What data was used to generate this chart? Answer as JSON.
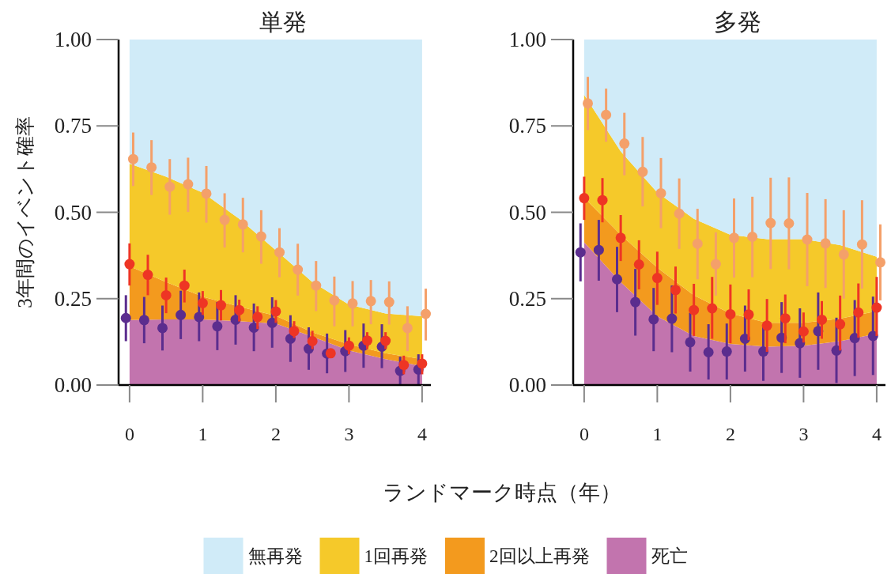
{
  "chart_data": [
    {
      "type": "area",
      "title": "単発",
      "xlabel": "ランドマーク時点（年）",
      "ylabel": "3年間のイベント確率",
      "stacked": true,
      "legend": "bottom",
      "x": [
        0,
        0.5,
        1,
        1.5,
        2,
        2.5,
        3,
        3.5,
        4
      ],
      "xlim": [
        -0.15,
        4.12
      ],
      "xticks": [
        0,
        1,
        2,
        3,
        4
      ],
      "ylim": [
        0,
        1
      ],
      "yticks": [
        {
          "value": 0,
          "label": "0.00"
        },
        {
          "value": 0.25,
          "label": "0.25"
        },
        {
          "value": 0.5,
          "label": "0.50"
        },
        {
          "value": 0.75,
          "label": "0.75"
        },
        {
          "value": 1,
          "label": "1.00"
        }
      ],
      "series": [
        {
          "name": "死亡",
          "color": "#c274ae",
          "values": [
            0.188,
            0.19,
            0.19,
            0.185,
            0.178,
            0.14,
            0.1,
            0.075,
            0.055
          ]
        },
        {
          "name": "2回以上再発",
          "color": "#f39a1e",
          "values": [
            0.156,
            0.108,
            0.066,
            0.042,
            0.022,
            0.013,
            0.018,
            0.017,
            0.02
          ]
        },
        {
          "name": "1回再発",
          "color": "#f5c92a",
          "values": [
            0.297,
            0.305,
            0.301,
            0.254,
            0.19,
            0.145,
            0.115,
            0.115,
            0.124
          ]
        },
        {
          "name": "無再発",
          "color": "#d0ebf8",
          "values": [
            0.359,
            0.397,
            0.443,
            0.519,
            0.61,
            0.702,
            0.767,
            0.793,
            0.801
          ]
        },
        {
          "type": "scatter",
          "color": "#5b2d8e",
          "x": [
            -0.05,
            0.2,
            0.45,
            0.7,
            0.95,
            1.2,
            1.45,
            1.7,
            1.95,
            2.2,
            2.45,
            2.7,
            2.95,
            3.2,
            3.45,
            3.7,
            3.95
          ],
          "marker": "circle",
          "values": [
            0.194,
            0.188,
            0.165,
            0.203,
            0.197,
            0.17,
            0.189,
            0.166,
            0.18,
            0.134,
            0.105,
            0.091,
            0.098,
            0.114,
            0.111,
            0.041,
            0.045
          ],
          "errors": [
            [
              0.127,
              0.26
            ],
            [
              0.121,
              0.255
            ],
            [
              0.1,
              0.23
            ],
            [
              0.133,
              0.273
            ],
            [
              0.127,
              0.268
            ],
            [
              0.101,
              0.24
            ],
            [
              0.117,
              0.26
            ],
            [
              0.098,
              0.236
            ],
            [
              0.108,
              0.254
            ],
            [
              0.067,
              0.202
            ],
            [
              0.044,
              0.167
            ],
            [
              0.034,
              0.149
            ],
            [
              0.038,
              0.159
            ],
            [
              0.05,
              0.178
            ],
            [
              0.049,
              0.176
            ],
            [
              0.002,
              0.082
            ],
            [
              0.002,
              0.089
            ]
          ]
        },
        {
          "type": "scatter",
          "color": "#ee3524",
          "x": [
            0,
            0.25,
            0.5,
            0.75,
            1,
            1.25,
            1.5,
            1.75,
            2,
            2.25,
            2.5,
            2.75,
            3,
            3.25,
            3.5,
            3.75,
            4
          ],
          "marker": "circle",
          "values": [
            0.35,
            0.319,
            0.26,
            0.288,
            0.237,
            0.231,
            0.217,
            0.197,
            0.213,
            0.156,
            0.127,
            0.092,
            0.114,
            0.129,
            0.128,
            0.058,
            0.062
          ],
          "errors": [
            [
              0.288,
              0.41
            ],
            [
              0.26,
              0.377
            ],
            [
              0.208,
              0.311
            ],
            [
              0.239,
              0.334
            ],
            [
              0.203,
              0.272
            ],
            [
              0.187,
              0.275
            ],
            [
              0.184,
              0.247
            ],
            [
              0.162,
              0.228
            ],
            [
              0.18,
              0.246
            ],
            [
              0.136,
              0.185
            ],
            [
              0.104,
              0.157
            ],
            null,
            [
              0.089,
              0.138
            ],
            [
              0.104,
              0.153
            ],
            [
              0.104,
              0.153
            ],
            [
              0.031,
              0.085
            ],
            [
              0.031,
              0.089
            ]
          ]
        },
        {
          "type": "scatter",
          "color": "#f4a06a",
          "x": [
            0.05,
            0.3,
            0.55,
            0.8,
            1.05,
            1.3,
            1.55,
            1.8,
            2.05,
            2.3,
            2.55,
            2.8,
            3.05,
            3.3,
            3.55,
            3.8,
            4.05
          ],
          "marker": "circle",
          "values": [
            0.654,
            0.63,
            0.574,
            0.581,
            0.554,
            0.478,
            0.465,
            0.43,
            0.384,
            0.334,
            0.288,
            0.245,
            0.236,
            0.243,
            0.24,
            0.165,
            0.206
          ],
          "errors": [
            [
              0.576,
              0.731
            ],
            [
              0.55,
              0.709
            ],
            [
              0.493,
              0.654
            ],
            [
              0.501,
              0.658
            ],
            [
              0.47,
              0.634
            ],
            [
              0.398,
              0.555
            ],
            [
              0.384,
              0.542
            ],
            [
              0.351,
              0.506
            ],
            [
              0.312,
              0.454
            ],
            [
              0.259,
              0.409
            ],
            [
              0.214,
              0.359
            ],
            [
              0.17,
              0.314
            ],
            [
              0.17,
              0.301
            ],
            [
              0.176,
              0.304
            ],
            [
              0.175,
              0.3
            ],
            [
              0.098,
              0.228
            ],
            [
              0.129,
              0.279
            ]
          ]
        }
      ]
    },
    {
      "type": "area",
      "title": "多発",
      "stacked": true,
      "x": [
        0,
        0.5,
        1,
        1.5,
        2,
        2.5,
        3,
        3.5,
        4
      ],
      "xlim": [
        -0.15,
        4.12
      ],
      "xticks": [
        0,
        1,
        2,
        3,
        4
      ],
      "ylim": [
        0,
        1
      ],
      "yticks": [
        {
          "value": 0,
          "label": "0.00"
        },
        {
          "value": 0.25,
          "label": "0.25"
        },
        {
          "value": 0.5,
          "label": "0.50"
        },
        {
          "value": 0.75,
          "label": "0.75"
        },
        {
          "value": 1,
          "label": "1.00"
        }
      ],
      "series": [
        {
          "color": "#c274ae",
          "values": [
            0.413,
            0.298,
            0.199,
            0.142,
            0.119,
            0.111,
            0.114,
            0.127,
            0.149
          ]
        },
        {
          "color": "#f39a1e",
          "values": [
            0.129,
            0.137,
            0.141,
            0.118,
            0.088,
            0.069,
            0.066,
            0.065,
            0.065
          ]
        },
        {
          "color": "#f5c92a",
          "values": [
            0.298,
            0.241,
            0.217,
            0.221,
            0.228,
            0.242,
            0.242,
            0.213,
            0.157
          ]
        },
        {
          "color": "#d0ebf8",
          "values": [
            0.16,
            0.324,
            0.443,
            0.519,
            0.565,
            0.578,
            0.578,
            0.595,
            0.629
          ]
        },
        {
          "type": "scatter",
          "color": "#5b2d8e",
          "x": [
            -0.05,
            0.2,
            0.45,
            0.7,
            0.95,
            1.2,
            1.45,
            1.7,
            1.95,
            2.2,
            2.45,
            2.7,
            2.95,
            3.2,
            3.45,
            3.7,
            3.95
          ],
          "marker": "circle",
          "values": [
            0.384,
            0.391,
            0.306,
            0.24,
            0.19,
            0.192,
            0.124,
            0.095,
            0.097,
            0.134,
            0.097,
            0.137,
            0.121,
            0.156,
            0.1,
            0.136,
            0.142
          ],
          "errors": [
            [
              0.3,
              0.468
            ],
            [
              0.302,
              0.478
            ],
            [
              0.211,
              0.4
            ],
            [
              0.143,
              0.336
            ],
            [
              0.098,
              0.281
            ],
            [
              0.095,
              0.288
            ],
            [
              0.039,
              0.209
            ],
            [
              0.016,
              0.176
            ],
            [
              0.016,
              0.178
            ],
            [
              0.039,
              0.23
            ],
            [
              0.012,
              0.169
            ],
            [
              0.035,
              0.24
            ],
            [
              0.021,
              0.222
            ],
            [
              0.044,
              0.268
            ],
            [
              0.006,
              0.195
            ],
            [
              0.026,
              0.246
            ],
            [
              0.029,
              0.256
            ]
          ]
        },
        {
          "type": "scatter",
          "color": "#ee3524",
          "x": [
            0,
            0.25,
            0.5,
            0.75,
            1,
            1.25,
            1.5,
            1.75,
            2,
            2.25,
            2.5,
            2.75,
            3,
            3.25,
            3.5,
            3.75,
            4
          ],
          "marker": "circle",
          "values": [
            0.541,
            0.535,
            0.426,
            0.349,
            0.31,
            0.275,
            0.217,
            0.222,
            0.205,
            0.204,
            0.172,
            0.193,
            0.155,
            0.189,
            0.176,
            0.21,
            0.224
          ],
          "errors": [
            [
              0.478,
              0.603
            ],
            [
              0.471,
              0.599
            ],
            [
              0.359,
              0.492
            ],
            [
              0.277,
              0.419
            ],
            [
              0.232,
              0.386
            ],
            [
              0.207,
              0.343
            ],
            [
              0.142,
              0.293
            ],
            [
              0.134,
              0.313
            ],
            [
              0.121,
              0.291
            ],
            [
              0.13,
              0.277
            ],
            [
              0.096,
              0.249
            ],
            [
              0.121,
              0.262
            ],
            [
              0.123,
              0.21
            ],
            [
              0.134,
              0.243
            ],
            [
              0.1,
              0.259
            ],
            [
              0.137,
              0.294
            ],
            [
              0.142,
              0.313
            ]
          ]
        },
        {
          "type": "scatter",
          "color": "#f4a06a",
          "x": [
            0.05,
            0.3,
            0.55,
            0.8,
            1.05,
            1.3,
            1.55,
            1.8,
            2.05,
            2.3,
            2.55,
            2.8,
            3.05,
            3.3,
            3.55,
            3.8,
            4.05
          ],
          "marker": "circle",
          "values": [
            0.815,
            0.782,
            0.699,
            0.617,
            0.555,
            0.496,
            0.409,
            0.35,
            0.426,
            0.429,
            0.469,
            0.468,
            0.421,
            0.41,
            0.378,
            0.407,
            0.355
          ],
          "errors": [
            [
              0.738,
              0.892
            ],
            [
              0.704,
              0.858
            ],
            [
              0.607,
              0.788
            ],
            [
              0.517,
              0.718
            ],
            [
              0.454,
              0.657
            ],
            [
              0.394,
              0.598
            ],
            [
              0.306,
              0.51
            ],
            [
              0.259,
              0.442
            ],
            [
              0.311,
              0.54
            ],
            [
              0.312,
              0.545
            ],
            [
              0.336,
              0.6
            ],
            [
              0.335,
              0.601
            ],
            [
              0.286,
              0.556
            ],
            [
              0.281,
              0.538
            ],
            [
              0.25,
              0.506
            ],
            [
              0.279,
              0.535
            ],
            [
              0.245,
              0.465
            ]
          ]
        }
      ]
    }
  ]
}
